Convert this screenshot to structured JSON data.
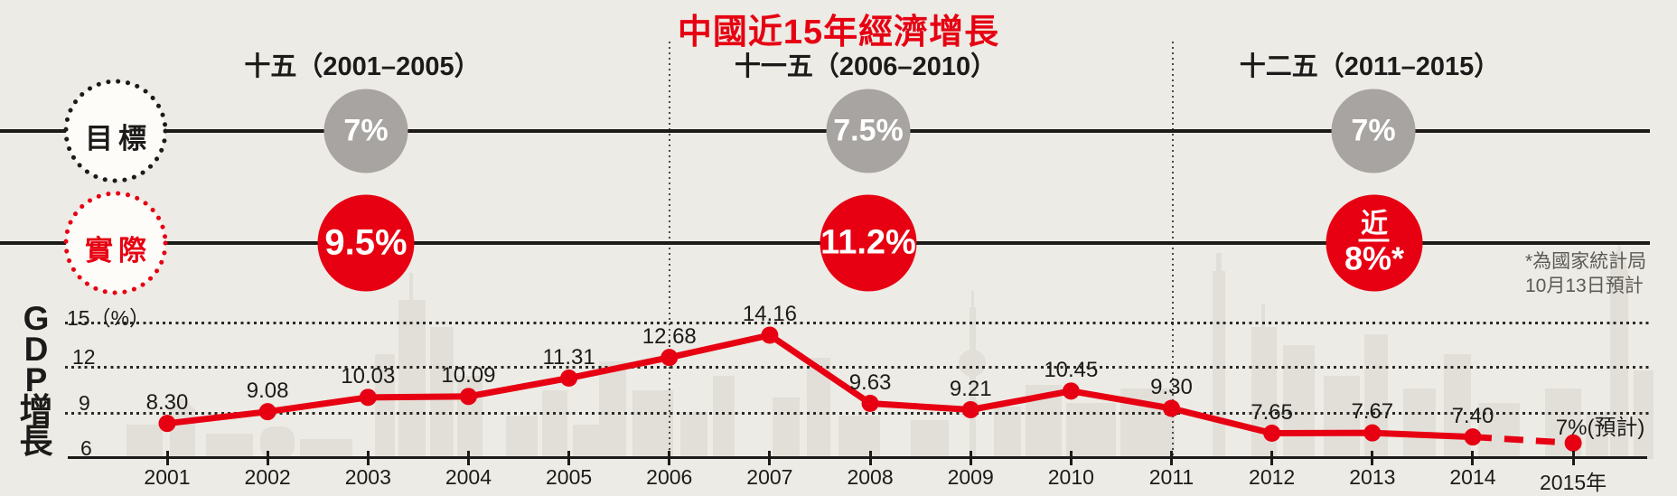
{
  "title": "中國近15年經濟增長",
  "colors": {
    "accent_red": "#e60012",
    "target_gray": "#a7a4a1",
    "background": "#edebe5",
    "skyline": "#e2dfd8",
    "text": "#1c1b19",
    "footnote_gray": "#5c5a56"
  },
  "periods": [
    {
      "header": "十五（2001–2005）",
      "target": "7%",
      "actual": "9.5%"
    },
    {
      "header": "十一五（2006–2010）",
      "target": "7.5%",
      "actual": "11.2%"
    },
    {
      "header": "十二五（2011–2015）",
      "target": "7%",
      "actual": {
        "line1": "近",
        "line2": "8%*"
      }
    }
  ],
  "row_labels": {
    "target": "目標",
    "actual": "實際"
  },
  "footnote": {
    "line1": "*為國家統計局",
    "line2": "10月13日預計"
  },
  "chart_data": {
    "type": "line",
    "title": "中國近15年經濟增長",
    "ylabel": "GDP增長",
    "xlabel": "",
    "ylim": [
      6,
      15.5
    ],
    "y_ticks": [
      6,
      9,
      12,
      15
    ],
    "y_tick_labels": [
      "6",
      "9",
      "12",
      "15（%）"
    ],
    "grid": "horizontal dotted at 9 / 12 / 15",
    "legend_position": "none",
    "x": [
      2001,
      2002,
      2003,
      2004,
      2005,
      2006,
      2007,
      2008,
      2009,
      2010,
      2011,
      2012,
      2013,
      2014,
      2015
    ],
    "x_labels": [
      "2001",
      "2002",
      "2003",
      "2004",
      "2005",
      "2006",
      "2007",
      "2008",
      "2009",
      "2010",
      "2011",
      "2012",
      "2013",
      "2014",
      "2015年"
    ],
    "series": [
      {
        "name": "GDP增長率(%)",
        "values": [
          8.3,
          9.08,
          10.03,
          10.09,
          11.31,
          12.68,
          14.16,
          9.63,
          9.21,
          10.45,
          9.3,
          7.65,
          7.67,
          7.4,
          7.0
        ],
        "color": "#e60012",
        "last_segment_dashed": true
      }
    ],
    "point_labels": [
      "8.30",
      "9.08",
      "10.03",
      "10.09",
      "11.31",
      "12.68",
      "14.16",
      "9.63",
      "9.21",
      "10.45",
      "9.30",
      "7.65",
      "7.67",
      "7.40",
      "7%(預計)"
    ],
    "annotations": [
      "最後一段2014–2015為虛線（預計值）"
    ]
  }
}
